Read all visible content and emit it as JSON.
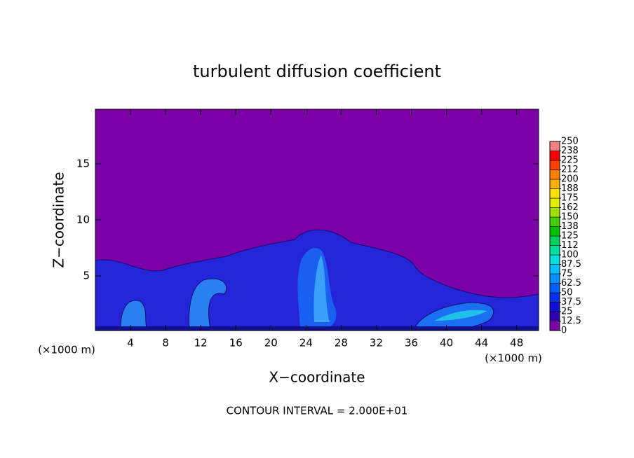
{
  "chart_data": {
    "type": "heatmap",
    "title": "turbulent diffusion coefficient",
    "x_label": "X−coordinate",
    "y_label": "Z−coordinate",
    "x_unit": "(×1000 m)",
    "footer": "CONTOUR INTERVAL = 2.000E+01",
    "xlim": [
      0,
      50.5
    ],
    "xticks": [
      4,
      8,
      12,
      16,
      20,
      24,
      28,
      32,
      36,
      40,
      44,
      48
    ],
    "ylim": [
      0,
      20
    ],
    "yticks": [
      5,
      10,
      15
    ],
    "colorbar": {
      "levels": [
        0,
        12.5,
        25,
        37.5,
        50,
        62.5,
        75,
        87.5,
        100,
        112,
        125,
        138,
        150,
        162,
        175,
        188,
        200,
        212,
        225,
        238,
        250
      ],
      "colors": [
        "#7b00a8",
        "#3000b0",
        "#1010d8",
        "#0030f0",
        "#0060ff",
        "#0090ff",
        "#00c0ff",
        "#00e0e0",
        "#00e0a0",
        "#00d060",
        "#00c000",
        "#40d000",
        "#a0e000",
        "#e0f000",
        "#ffe000",
        "#ffb000",
        "#ff8000",
        "#ff4000",
        "#ff0000",
        "#f08080"
      ]
    }
  }
}
